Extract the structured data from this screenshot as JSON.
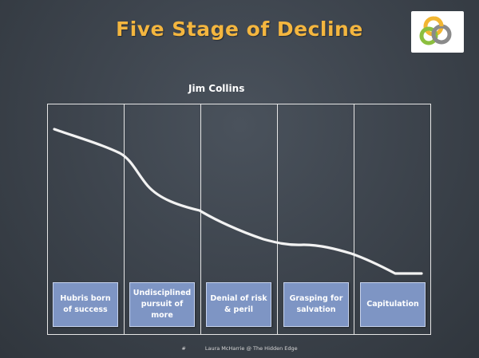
{
  "slide": {
    "title": "Five Stage of Decline",
    "subtitle": "Jim Collins",
    "footer_number": "#",
    "footer_text": "Laura McHarrie @ The Hidden Edge"
  },
  "logo": {
    "icon": "interlocking-rings-logo",
    "colors": [
      "#f2b632",
      "#8cbf3f",
      "#8a8a8a"
    ]
  },
  "stages": [
    {
      "label": "Hubris born of success"
    },
    {
      "label": "Undisciplined pursuit of more"
    },
    {
      "label": "Denial of risk & peril"
    },
    {
      "label": "Grasping for salvation"
    },
    {
      "label": "Capitulation"
    }
  ],
  "colors": {
    "title": "#f4b63f",
    "stage_box": "#7e95c4",
    "chalk_line": "#f2f2f2",
    "background": "#3e454e"
  }
}
